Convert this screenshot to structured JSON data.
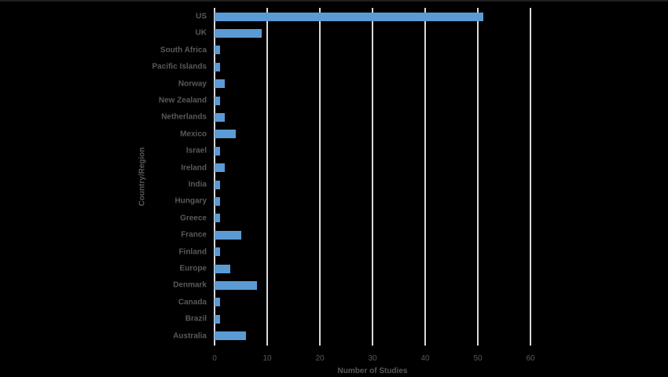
{
  "chart_data": {
    "type": "bar",
    "orientation": "horizontal",
    "title": "",
    "xlabel": "Number of Studies",
    "ylabel": "Country/Region",
    "xlim": [
      0,
      60
    ],
    "xticks": [
      0,
      10,
      20,
      30,
      40,
      50,
      60
    ],
    "grid": "vertical",
    "legend": "none",
    "bar_color": "#5b9bd5",
    "categories": [
      "US",
      "UK",
      "South Africa",
      "Pacific Islands",
      "Norway",
      "New Zealand",
      "Netherlands",
      "Mexico",
      "Israel",
      "Ireland",
      "India",
      "Hungary",
      "Greece",
      "France",
      "Finland",
      "Europe",
      "Denmark",
      "Canada",
      "Brazil",
      "Australia"
    ],
    "values": [
      51,
      9,
      1,
      1,
      2,
      1,
      2,
      4,
      1,
      2,
      1,
      1,
      1,
      5,
      1,
      3,
      8,
      1,
      1,
      6
    ]
  }
}
